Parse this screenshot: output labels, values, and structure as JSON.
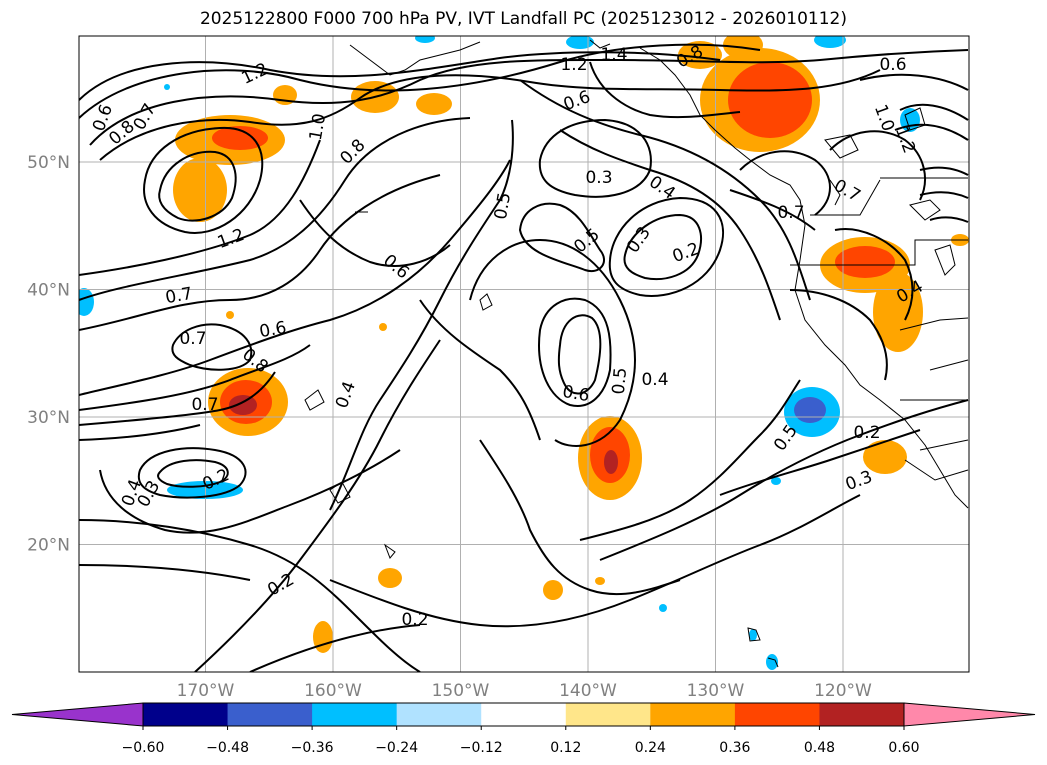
{
  "title": "2025122800 F000 700 hPa PV, IVT Landfall PC (2025123012 - 2026010112)",
  "map": {
    "lat_ticks": [
      {
        "lat": 50,
        "label": "50°N"
      },
      {
        "lat": 40,
        "label": "40°N"
      },
      {
        "lat": 30,
        "label": "30°N"
      },
      {
        "lat": 20,
        "label": "20°N"
      }
    ],
    "lon_ticks": [
      {
        "lon": -170,
        "label": "170°W"
      },
      {
        "lon": -160,
        "label": "160°W"
      },
      {
        "lon": -150,
        "label": "150°W"
      },
      {
        "lon": -140,
        "label": "140°W"
      },
      {
        "lon": -130,
        "label": "130°W"
      },
      {
        "lon": -120,
        "label": "120°W"
      }
    ],
    "contour_labels": [
      "1.4",
      "1.2",
      "0.8",
      "1.2",
      "0.6",
      "0.7",
      "0.8",
      "1.0",
      "0.8",
      "0.6",
      "0.3",
      "0.4",
      "1.0",
      "1.2",
      "0.5",
      "0.5",
      "0.3",
      "0.2",
      "0.7",
      "0.7",
      "1.2",
      "0.6",
      "0.7",
      "0.6",
      "0.7",
      "0.8",
      "0.7",
      "0.4",
      "0.4",
      "0.6",
      "0.5",
      "0.5",
      "0.6",
      "0.3",
      "0.4",
      "0.3",
      "0.2",
      "0.2",
      "0.2",
      "0.4",
      "0.2"
    ]
  },
  "colorbar": {
    "colors": [
      "#9933cc",
      "#00008b",
      "#3a5fcd",
      "#00bfff",
      "#b0e2ff",
      "#ffffff",
      "#ffe68a",
      "#ffa500",
      "#ff4500",
      "#b22222",
      "#ff88aa"
    ],
    "tick_labels": [
      "−0.60",
      "−0.48",
      "−0.36",
      "−0.24",
      "−0.12",
      "0.12",
      "0.24",
      "0.36",
      "0.48",
      "0.60"
    ]
  }
}
